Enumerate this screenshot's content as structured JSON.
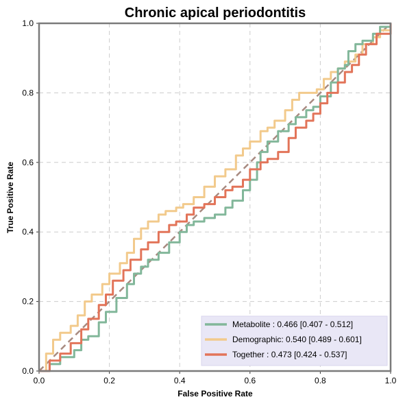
{
  "chart_data": {
    "type": "line",
    "title": "Chronic apical periodontitis",
    "xlabel": "False Positive Rate",
    "ylabel": "True Positive Rate",
    "xlim": [
      0,
      1
    ],
    "ylim": [
      0,
      1
    ],
    "xticks": [
      "0.0",
      "0.2",
      "0.4",
      "0.6",
      "0.8",
      "1.0"
    ],
    "yticks": [
      "0.0",
      "0.2",
      "0.4",
      "0.6",
      "0.8",
      "1.0"
    ],
    "grid": true,
    "legend_position": "bottom-right",
    "diagonal": {
      "x": [
        0,
        1
      ],
      "y": [
        0,
        1
      ],
      "color": "#A88A80",
      "style": "dashed"
    },
    "series": [
      {
        "name": "Metabolite",
        "label": "Metabolite     : 0.466 [0.407 - 0.512]",
        "color": "#82B79A",
        "x": [
          0,
          0.03,
          0.06,
          0.1,
          0.12,
          0.14,
          0.17,
          0.19,
          0.22,
          0.25,
          0.27,
          0.29,
          0.31,
          0.34,
          0.37,
          0.4,
          0.42,
          0.44,
          0.47,
          0.5,
          0.53,
          0.55,
          0.58,
          0.6,
          0.62,
          0.63,
          0.65,
          0.68,
          0.71,
          0.73,
          0.76,
          0.78,
          0.8,
          0.83,
          0.85,
          0.87,
          0.88,
          0.9,
          0.92,
          0.95,
          0.97,
          1
        ],
        "y": [
          0,
          0.02,
          0.04,
          0.06,
          0.09,
          0.1,
          0.14,
          0.17,
          0.21,
          0.25,
          0.28,
          0.3,
          0.32,
          0.34,
          0.37,
          0.4,
          0.42,
          0.43,
          0.44,
          0.45,
          0.47,
          0.49,
          0.52,
          0.55,
          0.6,
          0.63,
          0.66,
          0.69,
          0.71,
          0.73,
          0.75,
          0.76,
          0.79,
          0.83,
          0.87,
          0.88,
          0.92,
          0.94,
          0.95,
          0.97,
          0.99,
          1
        ]
      },
      {
        "name": "Demographic",
        "label": "Demographic: 0.540 [0.489 - 0.601]",
        "color": "#F2CA8C",
        "x": [
          0,
          0.02,
          0.04,
          0.06,
          0.09,
          0.11,
          0.13,
          0.15,
          0.18,
          0.2,
          0.23,
          0.25,
          0.27,
          0.29,
          0.31,
          0.34,
          0.36,
          0.39,
          0.41,
          0.44,
          0.47,
          0.5,
          0.53,
          0.56,
          0.58,
          0.6,
          0.63,
          0.65,
          0.67,
          0.7,
          0.72,
          0.74,
          0.76,
          0.79,
          0.81,
          0.83,
          0.85,
          0.87,
          0.9,
          0.92,
          0.95,
          0.97,
          1
        ],
        "y": [
          0,
          0.05,
          0.09,
          0.11,
          0.13,
          0.16,
          0.2,
          0.22,
          0.25,
          0.28,
          0.31,
          0.34,
          0.38,
          0.41,
          0.43,
          0.45,
          0.46,
          0.47,
          0.48,
          0.5,
          0.53,
          0.56,
          0.58,
          0.62,
          0.64,
          0.66,
          0.69,
          0.7,
          0.72,
          0.75,
          0.78,
          0.8,
          0.8,
          0.81,
          0.84,
          0.86,
          0.87,
          0.89,
          0.91,
          0.94,
          0.96,
          0.98,
          1
        ]
      },
      {
        "name": "Together",
        "label": "Together       : 0.473 [0.424 - 0.537]",
        "color": "#E27459",
        "x": [
          0,
          0.03,
          0.06,
          0.09,
          0.12,
          0.14,
          0.17,
          0.19,
          0.21,
          0.24,
          0.26,
          0.29,
          0.31,
          0.34,
          0.37,
          0.39,
          0.42,
          0.44,
          0.47,
          0.5,
          0.53,
          0.55,
          0.58,
          0.6,
          0.63,
          0.65,
          0.68,
          0.71,
          0.73,
          0.76,
          0.78,
          0.8,
          0.82,
          0.85,
          0.87,
          0.89,
          0.91,
          0.93,
          0.96,
          1
        ],
        "y": [
          0,
          0.03,
          0.05,
          0.08,
          0.12,
          0.15,
          0.19,
          0.22,
          0.26,
          0.29,
          0.32,
          0.35,
          0.37,
          0.4,
          0.42,
          0.43,
          0.45,
          0.47,
          0.48,
          0.5,
          0.52,
          0.53,
          0.55,
          0.58,
          0.6,
          0.61,
          0.63,
          0.67,
          0.7,
          0.72,
          0.74,
          0.77,
          0.8,
          0.83,
          0.86,
          0.88,
          0.91,
          0.94,
          0.97,
          1
        ]
      }
    ]
  }
}
